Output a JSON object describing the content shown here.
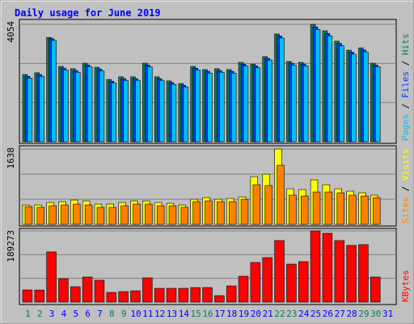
{
  "title": "Daily usage for June 2019",
  "legend_separator": " / ",
  "chart_data": [
    {
      "type": "bar",
      "ylim": [
        0,
        4054
      ],
      "yticks": [
        4054
      ],
      "series": [
        {
          "name": "Hits",
          "color": "#00805c",
          "values": [
            2320,
            2380,
            3600,
            2600,
            2520,
            2710,
            2570,
            2150,
            2240,
            2240,
            2710,
            2240,
            2100,
            2010,
            2600,
            2490,
            2520,
            2490,
            2740,
            2680,
            2940,
            3720,
            2770,
            2740,
            4054,
            3830,
            3470,
            3160,
            3240,
            2710,
            null
          ]
        },
        {
          "name": "Files",
          "color": "#0040ff",
          "values": [
            2260,
            2320,
            3560,
            2540,
            2460,
            2650,
            2510,
            2090,
            2180,
            2180,
            2650,
            2180,
            2040,
            1950,
            2540,
            2430,
            2460,
            2430,
            2680,
            2620,
            2880,
            3650,
            2710,
            2680,
            3960,
            3740,
            3390,
            3090,
            3170,
            2650,
            null
          ]
        },
        {
          "name": "Pages",
          "color": "#00c0ff",
          "values": [
            2200,
            2260,
            3500,
            2480,
            2400,
            2590,
            2450,
            2030,
            2120,
            2120,
            2590,
            2120,
            1980,
            1890,
            2480,
            2370,
            2400,
            2370,
            2620,
            2560,
            2820,
            3580,
            2650,
            2620,
            3880,
            3660,
            3310,
            3020,
            3100,
            2590,
            null
          ]
        }
      ]
    },
    {
      "type": "bar",
      "ylim": [
        0,
        1638
      ],
      "yticks": [
        1638
      ],
      "series": [
        {
          "name": "Visits",
          "color": "#ffff00",
          "values": [
            422,
            422,
            475,
            493,
            528,
            510,
            440,
            440,
            475,
            510,
            510,
            475,
            458,
            422,
            546,
            581,
            546,
            563,
            598,
            1038,
            1091,
            1638,
            774,
            757,
            968,
            862,
            774,
            722,
            686,
            634,
            null
          ]
        },
        {
          "name": "Sites",
          "color": "#ff8000",
          "values": [
            387,
            370,
            405,
            422,
            440,
            422,
            370,
            370,
            405,
            440,
            440,
            405,
            405,
            370,
            493,
            510,
            493,
            493,
            546,
            862,
            845,
            1285,
            634,
            616,
            704,
            704,
            686,
            634,
            616,
            581,
            null
          ]
        }
      ]
    },
    {
      "type": "bar",
      "ylim": [
        0,
        189273
      ],
      "yticks": [
        189273
      ],
      "categories": [
        "1",
        "2",
        "3",
        "4",
        "5",
        "6",
        "7",
        "8",
        "9",
        "10",
        "11",
        "12",
        "13",
        "14",
        "15",
        "16",
        "17",
        "18",
        "19",
        "20",
        "21",
        "22",
        "23",
        "24",
        "25",
        "26",
        "27",
        "28",
        "29",
        "30",
        "31"
      ],
      "category_colors": [
        "#00805c",
        "#00805c",
        "#0000ff",
        "#0000ff",
        "#0000ff",
        "#0000ff",
        "#0000ff",
        "#00805c",
        "#00805c",
        "#0000ff",
        "#0000ff",
        "#0000ff",
        "#0000ff",
        "#0000ff",
        "#00805c",
        "#00805c",
        "#0000ff",
        "#0000ff",
        "#0000ff",
        "#0000ff",
        "#0000ff",
        "#00805c",
        "#00805c",
        "#0000ff",
        "#0000ff",
        "#0000ff",
        "#0000ff",
        "#0000ff",
        "#00805c",
        "#00805c",
        "#0000ff"
      ],
      "series": [
        {
          "name": "KBytes",
          "color": "#ff0000",
          "values": [
            32300,
            32000,
            133400,
            62400,
            40900,
            66700,
            58100,
            25800,
            28000,
            30100,
            64500,
            36600,
            36600,
            36600,
            38700,
            38700,
            17200,
            43000,
            68800,
            105400,
            118300,
            163500,
            101000,
            107500,
            189273,
            182800,
            163500,
            150600,
            152700,
            66700,
            null
          ]
        }
      ]
    }
  ]
}
